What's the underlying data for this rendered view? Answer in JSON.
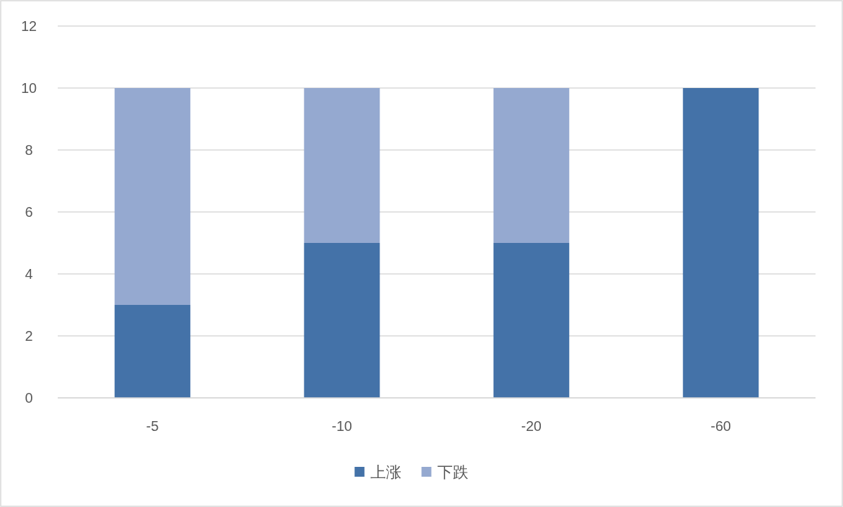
{
  "chart_data": {
    "type": "bar",
    "stacked": true,
    "categories": [
      "-5",
      "-10",
      "-20",
      "-60"
    ],
    "series": [
      {
        "name": "上涨",
        "color": "#4472a8",
        "values": [
          3,
          5,
          5,
          10
        ]
      },
      {
        "name": "下跌",
        "color": "#95a9d0",
        "values": [
          7,
          5,
          5,
          0
        ]
      }
    ],
    "ylim": [
      0,
      12
    ],
    "yticks": [
      0,
      2,
      4,
      6,
      8,
      10,
      12
    ],
    "grid": "y",
    "legend": "bottom"
  }
}
